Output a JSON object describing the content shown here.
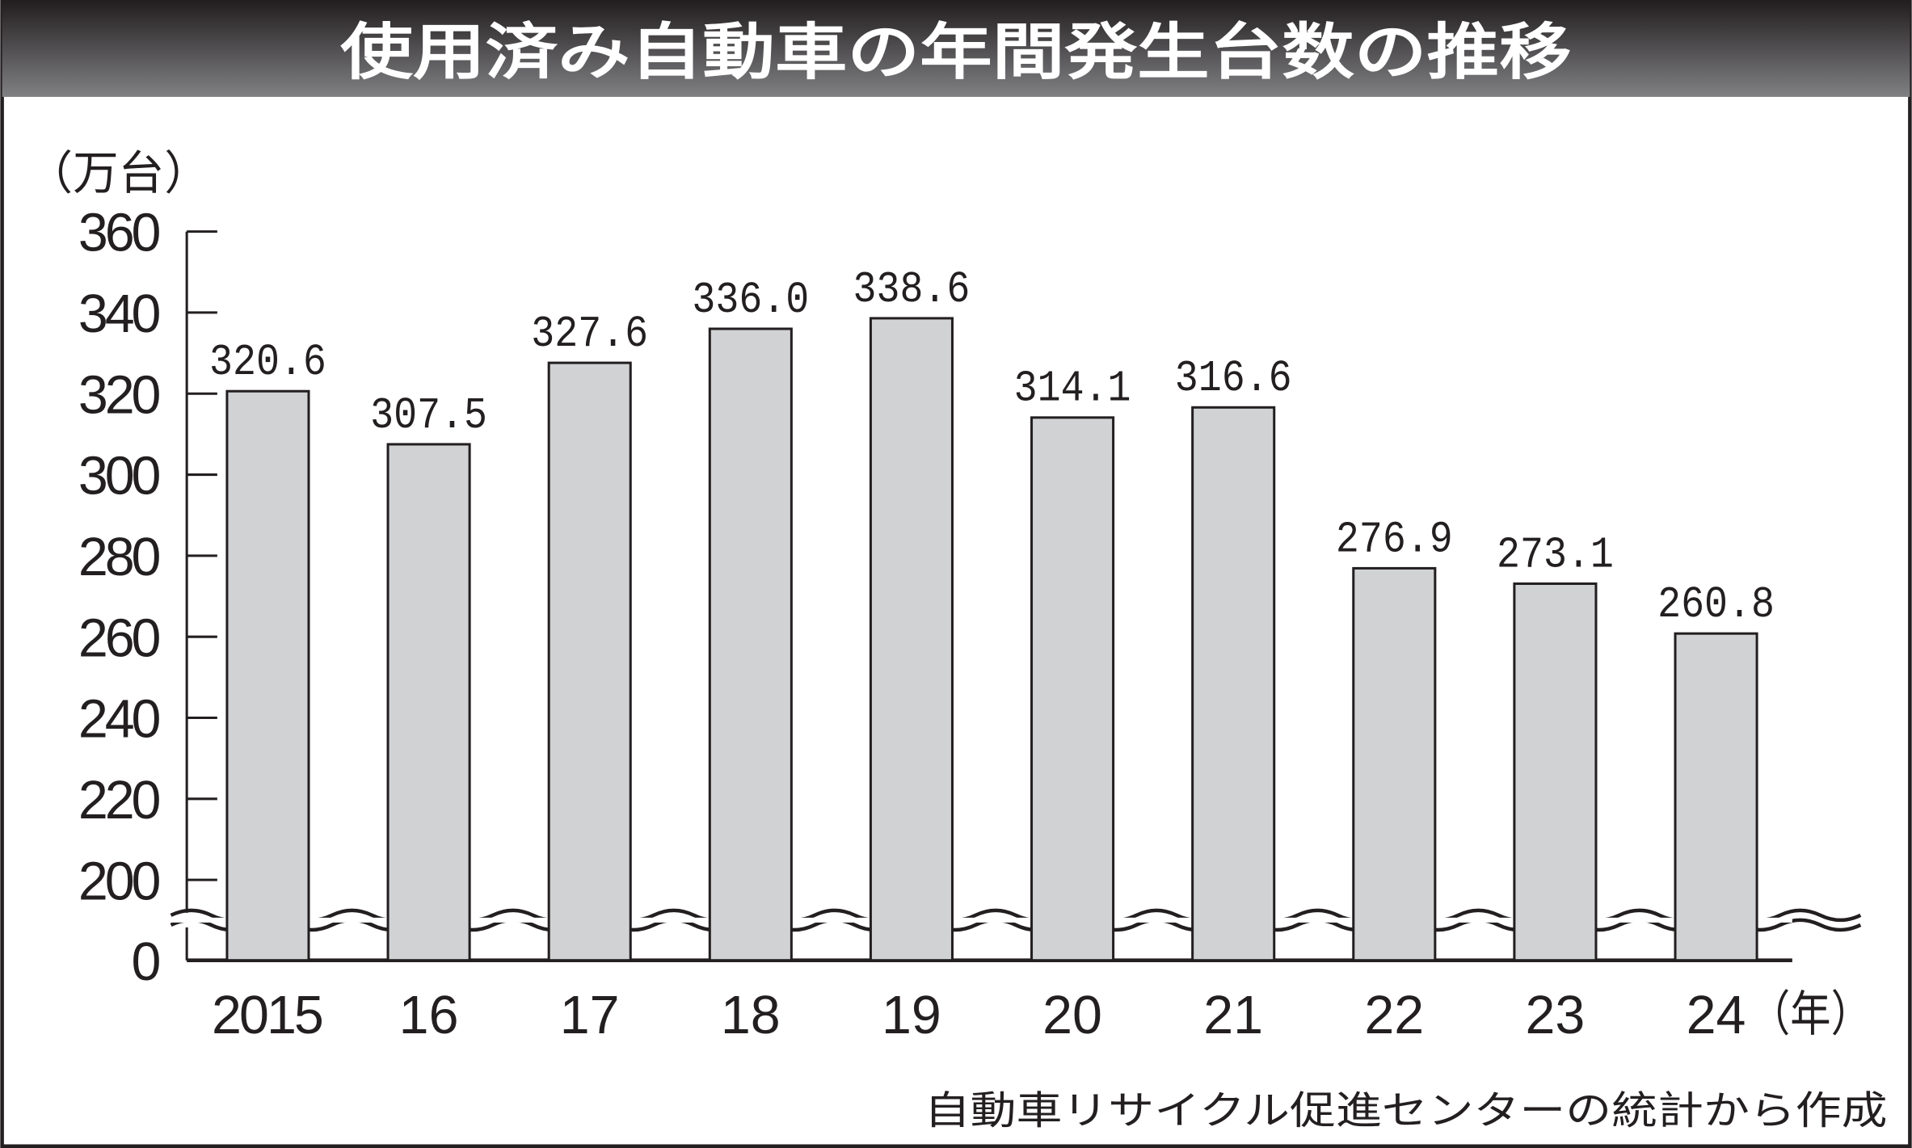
{
  "chart_data": {
    "type": "bar",
    "title": "使用済み自動車の年間発生台数の推移",
    "ylabel": "（万台）",
    "xlabel_suffix": "（年）",
    "categories": [
      "2015",
      "16",
      "17",
      "18",
      "19",
      "20",
      "21",
      "22",
      "23",
      "24"
    ],
    "values": [
      320.6,
      307.5,
      327.6,
      336.0,
      338.6,
      314.1,
      316.6,
      276.9,
      273.1,
      260.8
    ],
    "value_labels": [
      "320.6",
      "307.5",
      "327.6",
      "336.0",
      "338.6",
      "314.1",
      "316.6",
      "276.9",
      "273.1",
      "260.8"
    ],
    "yticks": [
      "0",
      "200",
      "220",
      "240",
      "260",
      "280",
      "300",
      "320",
      "340",
      "360"
    ],
    "ylim": [
      0,
      360
    ],
    "axis_break": "between 0 and 200",
    "grid": false,
    "source": "自動車リサイクル促進センターの統計から作成",
    "colors": {
      "bar": "#d1d2d4",
      "ink": "#231f20",
      "title_top": "#231f20",
      "title_bottom": "#808083"
    }
  }
}
